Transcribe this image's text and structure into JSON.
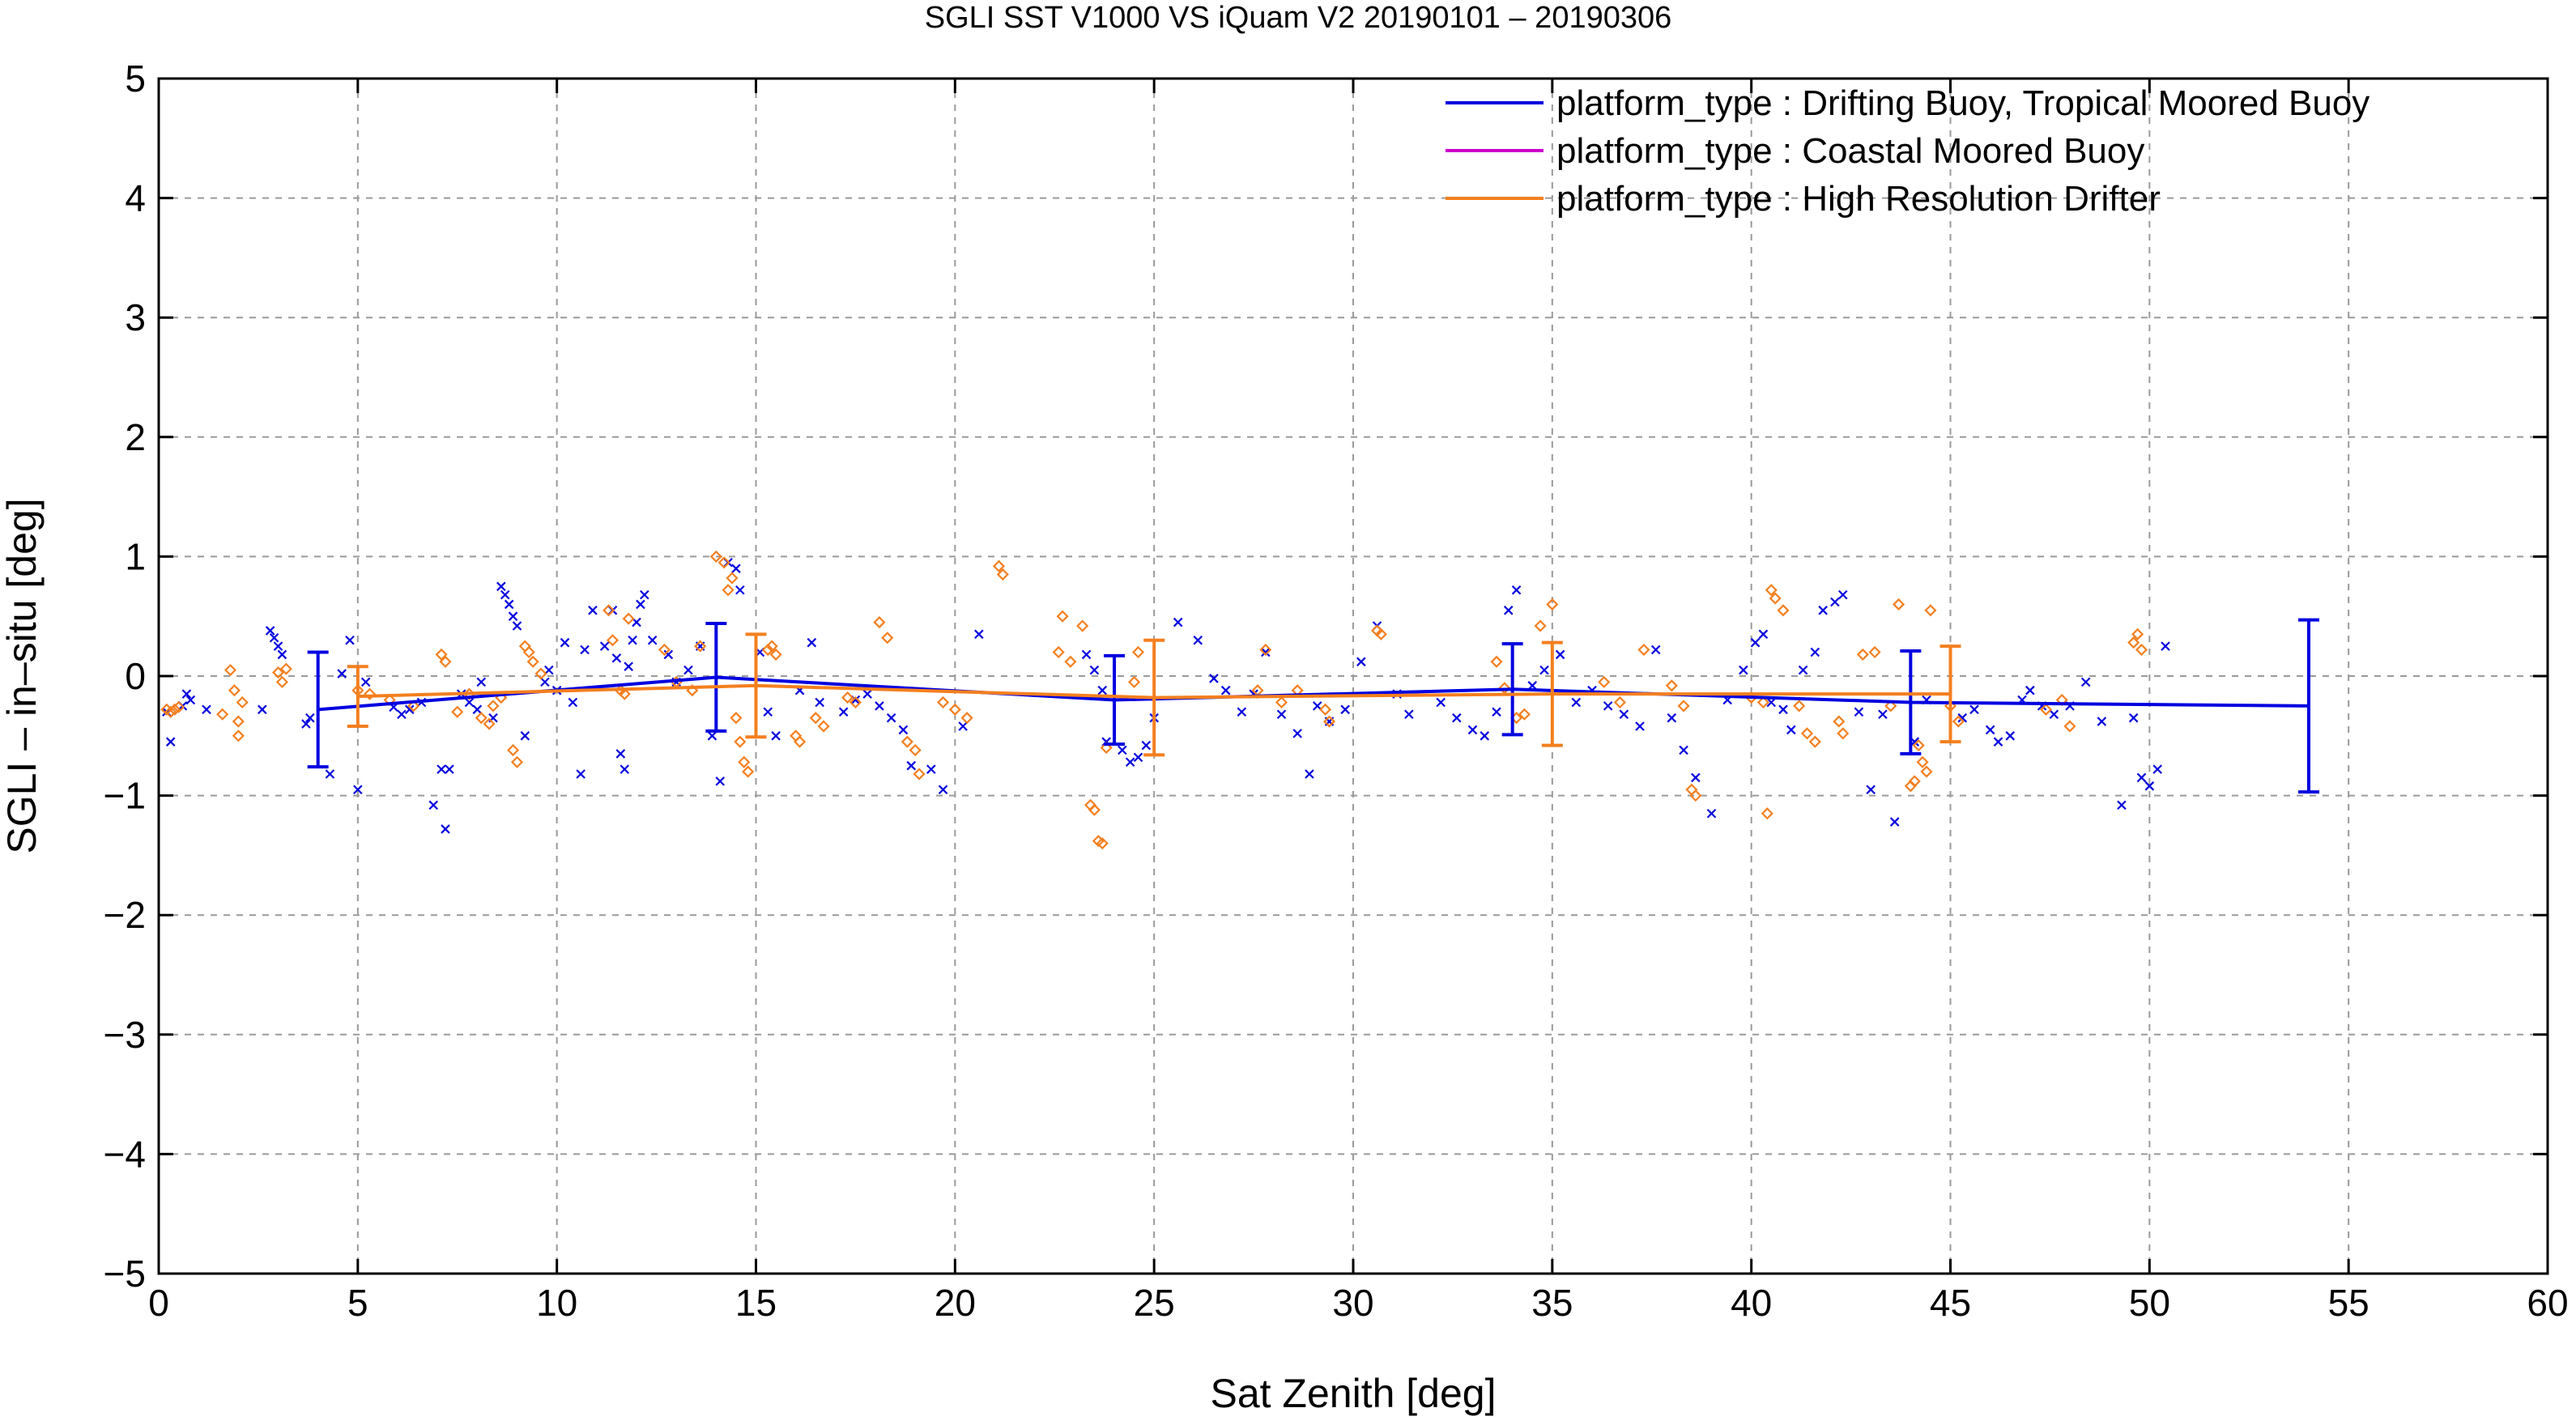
{
  "chart_data": {
    "type": "scatter",
    "title": "SGLI SST V1000 VS iQuam V2 20190101 – 20190306",
    "xlabel": "Sat Zenith [deg]",
    "ylabel": "SGLI – in–situ [deg]",
    "xlim": [
      0,
      60
    ],
    "ylim": [
      -5,
      5
    ],
    "x_ticks": [
      0,
      5,
      10,
      15,
      20,
      25,
      30,
      35,
      40,
      45,
      50,
      55,
      60
    ],
    "y_ticks": [
      -5,
      -4,
      -3,
      -2,
      -1,
      0,
      1,
      2,
      3,
      4,
      5
    ],
    "x_tick_labels": [
      "0",
      "5",
      "10",
      "15",
      "20",
      "25",
      "30",
      "35",
      "40",
      "45",
      "50",
      "55",
      "60"
    ],
    "y_tick_labels": [
      "−5",
      "−4",
      "−3",
      "−2",
      "−1",
      "0",
      "1",
      "2",
      "3",
      "4",
      "5"
    ],
    "grid": true,
    "legend_position": "top-right",
    "series": [
      {
        "name": "platform_type : Drifting Buoy, Tropical Moored Buoy",
        "color": "#0000e0",
        "marker": "x",
        "mean_line": {
          "x": [
            4,
            14,
            24,
            34,
            44,
            54
          ],
          "y": [
            -0.28,
            -0.01,
            -0.2,
            -0.11,
            -0.22,
            -0.25
          ],
          "err": [
            0.48,
            0.45,
            0.37,
            0.38,
            0.43,
            0.72
          ]
        },
        "points": [
          [
            0.2,
            -0.3
          ],
          [
            0.3,
            -0.55
          ],
          [
            0.6,
            -0.25
          ],
          [
            0.7,
            -0.15
          ],
          [
            0.8,
            -0.2
          ],
          [
            1.2,
            -0.28
          ],
          [
            2.6,
            -0.28
          ],
          [
            2.8,
            0.38
          ],
          [
            2.9,
            0.32
          ],
          [
            3.0,
            0.25
          ],
          [
            3.1,
            0.18
          ],
          [
            3.7,
            -0.4
          ],
          [
            3.8,
            -0.35
          ],
          [
            4.3,
            -0.82
          ],
          [
            4.6,
            0.02
          ],
          [
            4.8,
            0.3
          ],
          [
            5.0,
            -0.95
          ],
          [
            5.2,
            -0.05
          ],
          [
            5.9,
            -0.26
          ],
          [
            6.1,
            -0.32
          ],
          [
            6.3,
            -0.28
          ],
          [
            6.6,
            -0.22
          ],
          [
            6.9,
            -1.08
          ],
          [
            7.1,
            -0.78
          ],
          [
            7.2,
            -1.28
          ],
          [
            7.3,
            -0.78
          ],
          [
            7.6,
            -0.15
          ],
          [
            7.8,
            -0.22
          ],
          [
            8.0,
            -0.28
          ],
          [
            8.1,
            -0.05
          ],
          [
            8.4,
            -0.35
          ],
          [
            8.6,
            0.75
          ],
          [
            8.7,
            0.68
          ],
          [
            8.8,
            0.6
          ],
          [
            8.9,
            0.5
          ],
          [
            9.0,
            0.42
          ],
          [
            9.2,
            -0.5
          ],
          [
            9.7,
            -0.05
          ],
          [
            9.8,
            0.05
          ],
          [
            10.0,
            -0.12
          ],
          [
            10.2,
            0.28
          ],
          [
            10.4,
            -0.22
          ],
          [
            10.6,
            -0.82
          ],
          [
            10.7,
            0.22
          ],
          [
            10.9,
            0.55
          ],
          [
            11.2,
            0.25
          ],
          [
            11.4,
            0.55
          ],
          [
            11.5,
            0.15
          ],
          [
            11.6,
            -0.65
          ],
          [
            11.7,
            -0.78
          ],
          [
            11.8,
            0.08
          ],
          [
            11.9,
            0.3
          ],
          [
            12.0,
            0.45
          ],
          [
            12.1,
            0.6
          ],
          [
            12.2,
            0.68
          ],
          [
            12.4,
            0.3
          ],
          [
            12.8,
            0.18
          ],
          [
            13.0,
            -0.05
          ],
          [
            13.3,
            0.05
          ],
          [
            13.6,
            0.25
          ],
          [
            13.9,
            -0.5
          ],
          [
            14.1,
            -0.88
          ],
          [
            14.3,
            0.95
          ],
          [
            14.5,
            0.9
          ],
          [
            14.6,
            0.72
          ],
          [
            15.1,
            0.2
          ],
          [
            15.3,
            -0.3
          ],
          [
            15.5,
            -0.5
          ],
          [
            16.1,
            -0.12
          ],
          [
            16.4,
            0.28
          ],
          [
            16.6,
            -0.22
          ],
          [
            17.2,
            -0.3
          ],
          [
            17.5,
            -0.2
          ],
          [
            17.8,
            -0.15
          ],
          [
            18.1,
            -0.25
          ],
          [
            18.4,
            -0.35
          ],
          [
            18.7,
            -0.45
          ],
          [
            18.9,
            -0.75
          ],
          [
            19.4,
            -0.78
          ],
          [
            19.7,
            -0.95
          ],
          [
            20.2,
            -0.42
          ],
          [
            20.6,
            0.35
          ],
          [
            23.3,
            0.18
          ],
          [
            23.5,
            0.05
          ],
          [
            23.7,
            -0.12
          ],
          [
            23.8,
            -0.55
          ],
          [
            24.2,
            -0.62
          ],
          [
            24.4,
            -0.72
          ],
          [
            24.6,
            -0.68
          ],
          [
            24.8,
            -0.58
          ],
          [
            25.0,
            -0.35
          ],
          [
            25.6,
            0.45
          ],
          [
            26.1,
            0.3
          ],
          [
            26.5,
            -0.02
          ],
          [
            26.8,
            -0.12
          ],
          [
            27.2,
            -0.3
          ],
          [
            27.5,
            -0.15
          ],
          [
            27.8,
            0.2
          ],
          [
            28.2,
            -0.32
          ],
          [
            28.6,
            -0.48
          ],
          [
            28.9,
            -0.82
          ],
          [
            29.1,
            -0.25
          ],
          [
            29.4,
            -0.38
          ],
          [
            29.8,
            -0.28
          ],
          [
            30.2,
            0.12
          ],
          [
            30.6,
            0.42
          ],
          [
            31.1,
            -0.15
          ],
          [
            31.4,
            -0.32
          ],
          [
            32.2,
            -0.22
          ],
          [
            32.6,
            -0.35
          ],
          [
            33.0,
            -0.45
          ],
          [
            33.3,
            -0.5
          ],
          [
            33.6,
            -0.3
          ],
          [
            33.9,
            0.55
          ],
          [
            34.1,
            0.72
          ],
          [
            34.5,
            -0.08
          ],
          [
            34.8,
            0.05
          ],
          [
            35.2,
            0.18
          ],
          [
            35.6,
            -0.22
          ],
          [
            36.0,
            -0.12
          ],
          [
            36.4,
            -0.25
          ],
          [
            36.8,
            -0.32
          ],
          [
            37.2,
            -0.42
          ],
          [
            37.6,
            0.22
          ],
          [
            38.0,
            -0.35
          ],
          [
            38.3,
            -0.62
          ],
          [
            38.6,
            -0.85
          ],
          [
            39.0,
            -1.15
          ],
          [
            39.4,
            -0.2
          ],
          [
            39.8,
            0.05
          ],
          [
            40.1,
            0.28
          ],
          [
            40.3,
            0.35
          ],
          [
            40.5,
            -0.22
          ],
          [
            40.8,
            -0.28
          ],
          [
            41.0,
            -0.45
          ],
          [
            41.3,
            0.05
          ],
          [
            41.6,
            0.2
          ],
          [
            41.8,
            0.55
          ],
          [
            42.1,
            0.62
          ],
          [
            42.3,
            0.68
          ],
          [
            42.7,
            -0.3
          ],
          [
            43.0,
            -0.95
          ],
          [
            43.3,
            -0.32
          ],
          [
            43.6,
            -1.22
          ],
          [
            44.1,
            -0.55
          ],
          [
            44.4,
            -0.2
          ],
          [
            45.3,
            -0.35
          ],
          [
            45.6,
            -0.28
          ],
          [
            46.0,
            -0.45
          ],
          [
            46.2,
            -0.55
          ],
          [
            46.5,
            -0.5
          ],
          [
            46.8,
            -0.2
          ],
          [
            47.0,
            -0.12
          ],
          [
            47.3,
            -0.25
          ],
          [
            47.6,
            -0.32
          ],
          [
            48.0,
            -0.25
          ],
          [
            48.4,
            -0.05
          ],
          [
            48.8,
            -0.38
          ],
          [
            49.3,
            -1.08
          ],
          [
            49.6,
            -0.35
          ],
          [
            49.8,
            -0.85
          ],
          [
            50.0,
            -0.92
          ],
          [
            50.2,
            -0.78
          ],
          [
            50.4,
            0.25
          ]
        ]
      },
      {
        "name": "platform_type : Coastal Moored Buoy",
        "color": "#cc00cc",
        "marker": "square",
        "points": []
      },
      {
        "name": "platform_type : High Resolution Drifter",
        "color": "#f47f1f",
        "marker": "diamond",
        "mean_line": {
          "x": [
            5,
            15,
            25,
            35,
            45
          ],
          "y": [
            -0.17,
            -0.08,
            -0.18,
            -0.15,
            -0.15
          ],
          "err": [
            0.25,
            0.43,
            0.48,
            0.43,
            0.4
          ]
        },
        "points": [
          [
            0.2,
            -0.28
          ],
          [
            0.3,
            -0.3
          ],
          [
            0.4,
            -0.28
          ],
          [
            0.5,
            -0.26
          ],
          [
            1.6,
            -0.32
          ],
          [
            1.8,
            0.05
          ],
          [
            1.9,
            -0.12
          ],
          [
            2.0,
            -0.38
          ],
          [
            2.0,
            -0.5
          ],
          [
            2.1,
            -0.22
          ],
          [
            3.0,
            0.03
          ],
          [
            3.1,
            -0.05
          ],
          [
            3.2,
            0.06
          ],
          [
            5.0,
            -0.12
          ],
          [
            5.3,
            -0.15
          ],
          [
            5.8,
            -0.2
          ],
          [
            6.4,
            -0.25
          ],
          [
            7.1,
            0.18
          ],
          [
            7.2,
            0.12
          ],
          [
            7.5,
            -0.3
          ],
          [
            7.8,
            -0.15
          ],
          [
            8.1,
            -0.35
          ],
          [
            8.3,
            -0.4
          ],
          [
            8.4,
            -0.25
          ],
          [
            8.6,
            -0.18
          ],
          [
            8.9,
            -0.62
          ],
          [
            9.0,
            -0.72
          ],
          [
            9.2,
            0.25
          ],
          [
            9.3,
            0.2
          ],
          [
            9.4,
            0.12
          ],
          [
            9.6,
            0.02
          ],
          [
            11.3,
            0.55
          ],
          [
            11.4,
            0.3
          ],
          [
            11.6,
            -0.12
          ],
          [
            11.7,
            -0.15
          ],
          [
            11.8,
            0.48
          ],
          [
            12.7,
            0.22
          ],
          [
            13.0,
            -0.05
          ],
          [
            13.4,
            -0.12
          ],
          [
            13.6,
            0.25
          ],
          [
            14.0,
            1.0
          ],
          [
            14.2,
            0.95
          ],
          [
            14.3,
            0.72
          ],
          [
            14.4,
            0.82
          ],
          [
            14.5,
            -0.35
          ],
          [
            14.6,
            -0.55
          ],
          [
            14.7,
            -0.72
          ],
          [
            14.8,
            -0.8
          ],
          [
            15.3,
            0.22
          ],
          [
            15.4,
            0.25
          ],
          [
            15.5,
            0.18
          ],
          [
            16.0,
            -0.5
          ],
          [
            16.1,
            -0.55
          ],
          [
            16.5,
            -0.35
          ],
          [
            16.7,
            -0.42
          ],
          [
            17.3,
            -0.18
          ],
          [
            17.5,
            -0.22
          ],
          [
            18.1,
            0.45
          ],
          [
            18.3,
            0.32
          ],
          [
            18.8,
            -0.55
          ],
          [
            19.0,
            -0.62
          ],
          [
            19.1,
            -0.82
          ],
          [
            19.7,
            -0.22
          ],
          [
            20.0,
            -0.28
          ],
          [
            20.3,
            -0.35
          ],
          [
            21.1,
            0.92
          ],
          [
            21.2,
            0.85
          ],
          [
            22.6,
            0.2
          ],
          [
            22.7,
            0.5
          ],
          [
            22.9,
            0.12
          ],
          [
            23.2,
            0.42
          ],
          [
            23.4,
            -1.08
          ],
          [
            23.5,
            -1.12
          ],
          [
            23.6,
            -1.38
          ],
          [
            23.7,
            -1.4
          ],
          [
            23.8,
            -0.6
          ],
          [
            24.5,
            -0.05
          ],
          [
            24.6,
            0.2
          ],
          [
            27.6,
            -0.12
          ],
          [
            27.8,
            0.22
          ],
          [
            28.2,
            -0.22
          ],
          [
            28.6,
            -0.12
          ],
          [
            29.3,
            -0.28
          ],
          [
            29.4,
            -0.38
          ],
          [
            30.6,
            0.38
          ],
          [
            30.7,
            0.35
          ],
          [
            33.6,
            0.12
          ],
          [
            33.8,
            -0.1
          ],
          [
            34.1,
            -0.35
          ],
          [
            34.3,
            -0.32
          ],
          [
            34.7,
            0.42
          ],
          [
            35.0,
            0.6
          ],
          [
            36.3,
            -0.05
          ],
          [
            36.7,
            -0.22
          ],
          [
            37.3,
            0.22
          ],
          [
            38.0,
            -0.08
          ],
          [
            38.3,
            -0.25
          ],
          [
            38.5,
            -0.95
          ],
          [
            38.6,
            -1.0
          ],
          [
            40.0,
            -0.18
          ],
          [
            40.3,
            -0.22
          ],
          [
            40.4,
            -1.15
          ],
          [
            40.5,
            0.72
          ],
          [
            40.6,
            0.65
          ],
          [
            40.8,
            0.55
          ],
          [
            41.2,
            -0.25
          ],
          [
            41.4,
            -0.48
          ],
          [
            41.6,
            -0.55
          ],
          [
            42.2,
            -0.38
          ],
          [
            42.3,
            -0.48
          ],
          [
            42.8,
            0.18
          ],
          [
            43.1,
            0.2
          ],
          [
            43.5,
            -0.25
          ],
          [
            43.7,
            0.6
          ],
          [
            44.0,
            -0.92
          ],
          [
            44.1,
            -0.88
          ],
          [
            44.2,
            -0.58
          ],
          [
            44.3,
            -0.72
          ],
          [
            44.4,
            -0.8
          ],
          [
            44.5,
            0.55
          ],
          [
            45.0,
            -0.25
          ],
          [
            45.2,
            -0.38
          ],
          [
            47.4,
            -0.28
          ],
          [
            47.8,
            -0.2
          ],
          [
            48.0,
            -0.42
          ],
          [
            49.6,
            0.28
          ],
          [
            49.7,
            0.35
          ],
          [
            49.8,
            0.22
          ]
        ]
      }
    ]
  }
}
